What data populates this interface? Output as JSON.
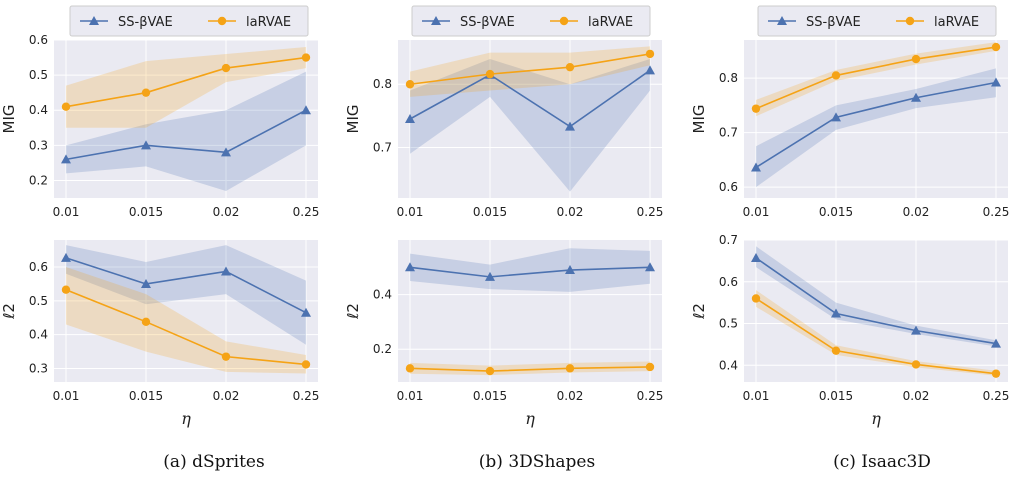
{
  "colors": {
    "series1": "#4c72b0",
    "series2": "#f5a316",
    "plot_bg": "#eaeaf2",
    "grid": "#ffffff"
  },
  "legend": [
    {
      "name": "SS-βVAE",
      "marker": "triangle"
    },
    {
      "name": "laRVAE",
      "marker": "circle"
    }
  ],
  "captions": [
    "(a) dSprites",
    "(b) 3DShapes",
    "(c) Isaac3D"
  ],
  "chart_data": [
    {
      "type": "line",
      "panel": "dSprites-MIG",
      "ylabel": "MIG",
      "xlabel": "",
      "categories": [
        "0.01",
        "0.015",
        "0.02",
        "0.25"
      ],
      "ylim": [
        0.15,
        0.6
      ],
      "yticks": [
        0.2,
        0.3,
        0.4,
        0.5,
        0.6
      ],
      "grid": true,
      "series": [
        {
          "name": "SS-βVAE",
          "values": [
            0.26,
            0.3,
            0.28,
            0.4
          ],
          "lower": [
            0.22,
            0.24,
            0.17,
            0.3
          ],
          "upper": [
            0.3,
            0.36,
            0.4,
            0.51
          ]
        },
        {
          "name": "laRVAE",
          "values": [
            0.41,
            0.45,
            0.52,
            0.55
          ],
          "lower": [
            0.35,
            0.35,
            0.48,
            0.52
          ],
          "upper": [
            0.47,
            0.54,
            0.56,
            0.58
          ]
        }
      ]
    },
    {
      "type": "line",
      "panel": "3DShapes-MIG",
      "ylabel": "MIG",
      "xlabel": "",
      "categories": [
        "0.01",
        "0.015",
        "0.02",
        "0.25"
      ],
      "ylim": [
        0.62,
        0.87
      ],
      "yticks": [
        0.7,
        0.8
      ],
      "grid": true,
      "series": [
        {
          "name": "SS-βVAE",
          "values": [
            0.745,
            0.815,
            0.733,
            0.822
          ],
          "lower": [
            0.69,
            0.78,
            0.63,
            0.79
          ],
          "upper": [
            0.79,
            0.84,
            0.8,
            0.84
          ]
        },
        {
          "name": "laRVAE",
          "values": [
            0.8,
            0.816,
            0.827,
            0.848
          ],
          "lower": [
            0.78,
            0.79,
            0.8,
            0.83
          ],
          "upper": [
            0.82,
            0.85,
            0.85,
            0.86
          ]
        }
      ]
    },
    {
      "type": "line",
      "panel": "Isaac3D-MIG",
      "ylabel": "MIG",
      "xlabel": "",
      "categories": [
        "0.01",
        "0.015",
        "0.02",
        "0.25"
      ],
      "ylim": [
        0.58,
        0.87
      ],
      "yticks": [
        0.6,
        0.7,
        0.8
      ],
      "grid": true,
      "series": [
        {
          "name": "SS-βVAE",
          "values": [
            0.636,
            0.728,
            0.764,
            0.792
          ],
          "lower": [
            0.6,
            0.705,
            0.745,
            0.765
          ],
          "upper": [
            0.675,
            0.75,
            0.78,
            0.818
          ]
        },
        {
          "name": "laRVAE",
          "values": [
            0.744,
            0.805,
            0.835,
            0.857
          ],
          "lower": [
            0.73,
            0.795,
            0.825,
            0.85
          ],
          "upper": [
            0.76,
            0.815,
            0.845,
            0.866
          ]
        }
      ]
    },
    {
      "type": "line",
      "panel": "dSprites-l2",
      "ylabel": "ℓ2",
      "xlabel": "η",
      "categories": [
        "0.01",
        "0.015",
        "0.02",
        "0.25"
      ],
      "ylim": [
        0.26,
        0.68
      ],
      "yticks": [
        0.3,
        0.4,
        0.5,
        0.6
      ],
      "grid": true,
      "series": [
        {
          "name": "SS-βVAE",
          "values": [
            0.627,
            0.55,
            0.587,
            0.465
          ],
          "lower": [
            0.58,
            0.49,
            0.52,
            0.37
          ],
          "upper": [
            0.665,
            0.615,
            0.665,
            0.56
          ]
        },
        {
          "name": "laRVAE",
          "values": [
            0.533,
            0.438,
            0.335,
            0.312
          ],
          "lower": [
            0.43,
            0.35,
            0.29,
            0.285
          ],
          "upper": [
            0.6,
            0.52,
            0.38,
            0.34
          ]
        }
      ]
    },
    {
      "type": "line",
      "panel": "3DShapes-l2",
      "ylabel": "ℓ2",
      "xlabel": "η",
      "categories": [
        "0.01",
        "0.015",
        "0.02",
        "0.25"
      ],
      "ylim": [
        0.08,
        0.6
      ],
      "yticks": [
        0.2,
        0.4
      ],
      "grid": true,
      "series": [
        {
          "name": "SS-βVAE",
          "values": [
            0.5,
            0.465,
            0.49,
            0.5
          ],
          "lower": [
            0.45,
            0.42,
            0.41,
            0.44
          ],
          "upper": [
            0.55,
            0.51,
            0.57,
            0.56
          ]
        },
        {
          "name": "laRVAE",
          "values": [
            0.13,
            0.12,
            0.13,
            0.135
          ],
          "lower": [
            0.11,
            0.105,
            0.115,
            0.12
          ],
          "upper": [
            0.15,
            0.14,
            0.15,
            0.155
          ]
        }
      ]
    },
    {
      "type": "line",
      "panel": "Isaac3D-l2",
      "ylabel": "ℓ2",
      "xlabel": "η",
      "categories": [
        "0.01",
        "0.015",
        "0.02",
        "0.25"
      ],
      "ylim": [
        0.36,
        0.7
      ],
      "yticks": [
        0.4,
        0.5,
        0.6,
        0.7
      ],
      "grid": true,
      "series": [
        {
          "name": "SS-βVAE",
          "values": [
            0.657,
            0.524,
            0.483,
            0.452
          ],
          "lower": [
            0.635,
            0.51,
            0.475,
            0.445
          ],
          "upper": [
            0.685,
            0.55,
            0.495,
            0.46
          ]
        },
        {
          "name": "laRVAE",
          "values": [
            0.56,
            0.435,
            0.402,
            0.38
          ],
          "lower": [
            0.54,
            0.425,
            0.395,
            0.375
          ],
          "upper": [
            0.58,
            0.448,
            0.41,
            0.387
          ]
        }
      ]
    }
  ]
}
